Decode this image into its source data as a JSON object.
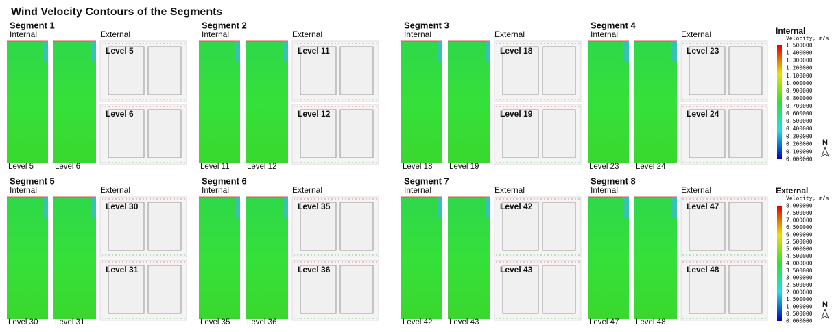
{
  "title": "Wind Velocity Contours of  the Segments",
  "segments": [
    {
      "name": "Segment 1",
      "internal": "Internal",
      "external": "External",
      "internal_levels": [
        "Level 5",
        "Level 6"
      ],
      "external_levels": [
        "Level 5",
        "Level 6"
      ]
    },
    {
      "name": "Segment 2",
      "internal": "Internal",
      "external": "External",
      "internal_levels": [
        "Level 11",
        "Level 12"
      ],
      "external_levels": [
        "Level 11",
        "Level 12"
      ]
    },
    {
      "name": "Segment 3",
      "internal": "Internal",
      "external": "External",
      "internal_levels": [
        "Level 18",
        "Level 19"
      ],
      "external_levels": [
        "Level 18",
        "Level 19"
      ]
    },
    {
      "name": "Segment 4",
      "internal": "Internal",
      "external": "External",
      "internal_levels": [
        "Level 23",
        "Level 24"
      ],
      "external_levels": [
        "Level 23",
        "Level 24"
      ]
    },
    {
      "name": "Segment 5",
      "internal": "Internal",
      "external": "External",
      "internal_levels": [
        "Level 30",
        "Level 31"
      ],
      "external_levels": [
        "Level 30",
        "Level 31"
      ]
    },
    {
      "name": "Segment 6",
      "internal": "Internal",
      "external": "External",
      "internal_levels": [
        "Level 35",
        "Level 36"
      ],
      "external_levels": [
        "Level 35",
        "Level 36"
      ]
    },
    {
      "name": "Segment 7",
      "internal": "Internal",
      "external": "External",
      "internal_levels": [
        "Level 42",
        "Level 43"
      ],
      "external_levels": [
        "Level 42",
        "Level 43"
      ]
    },
    {
      "name": "Segment 8",
      "internal": "Internal",
      "external": "External",
      "internal_levels": [
        "Level 47",
        "Level 48"
      ],
      "external_levels": [
        "Level 47",
        "Level 48"
      ]
    }
  ],
  "legends": [
    {
      "title": "Internal",
      "unit": "Velocity, m/s",
      "north": "N",
      "ticks": [
        "1.500000",
        "1.400000",
        "1.300000",
        "1.200000",
        "1.100000",
        "1.000000",
        "0.900000",
        "0.800000",
        "0.700000",
        "0.600000",
        "0.500000",
        "0.400000",
        "0.300000",
        "0.200000",
        "0.100000",
        "0.000000"
      ]
    },
    {
      "title": "External",
      "unit": "Velocity, m/s",
      "north": "N",
      "ticks": [
        "8.000000",
        "7.500000",
        "7.000000",
        "6.500000",
        "6.000000",
        "5.500000",
        "5.000000",
        "4.500000",
        "4.000000",
        "3.500000",
        "3.000000",
        "2.500000",
        "2.000000",
        "1.500000",
        "1.000000",
        "0.500000",
        "0.000000"
      ]
    }
  ]
}
